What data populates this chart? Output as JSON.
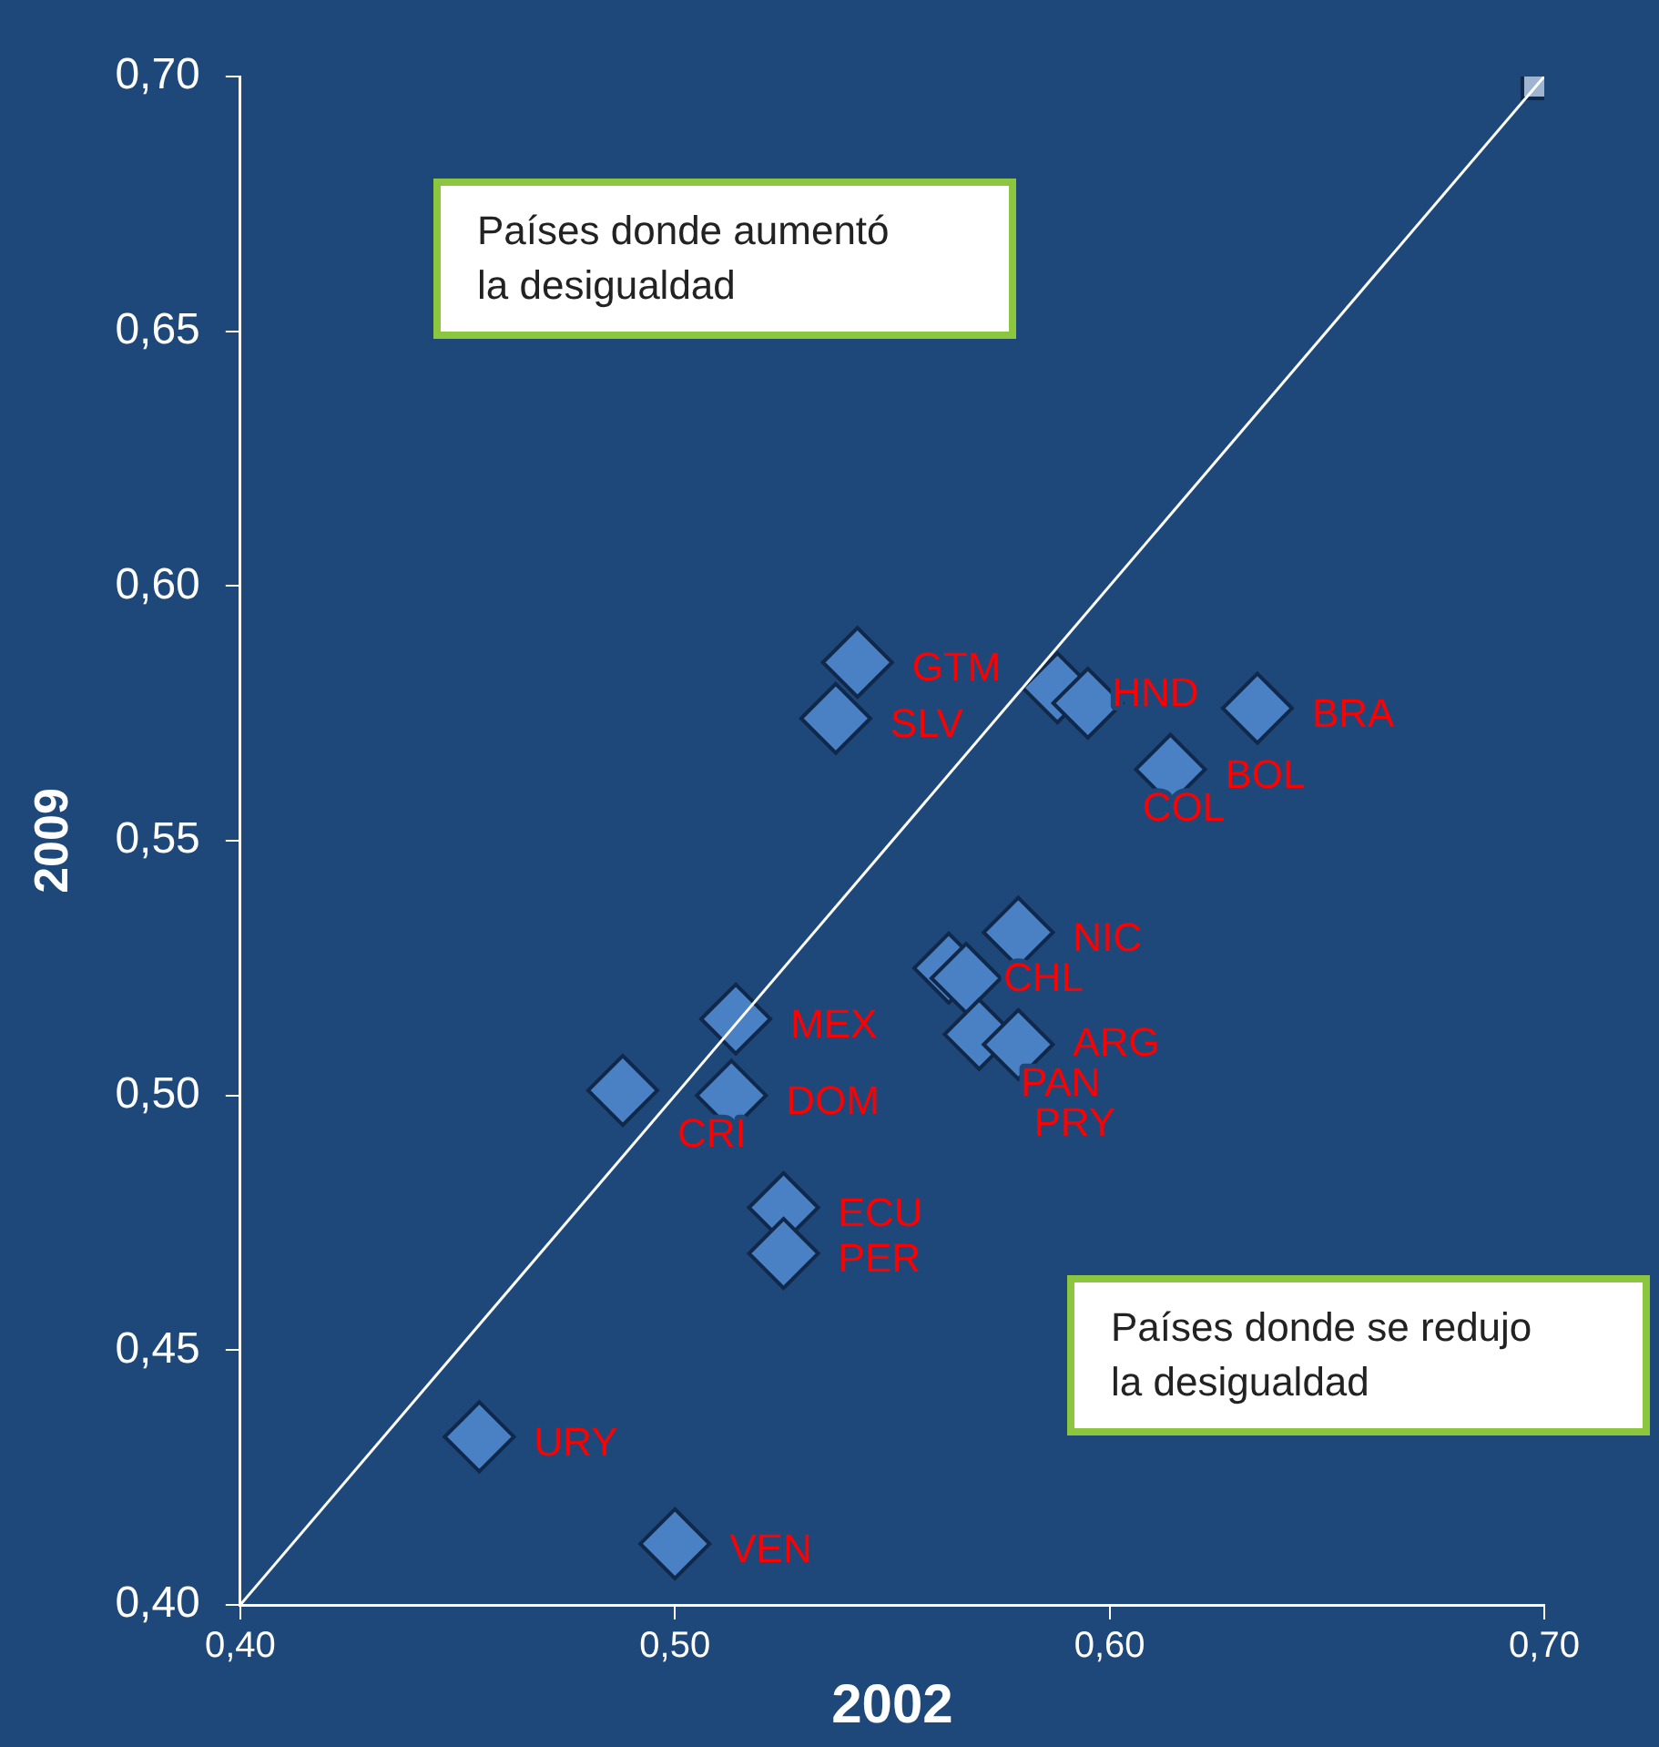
{
  "chart_data": {
    "type": "scatter",
    "xlabel": "2002",
    "ylabel": "2009",
    "xlim": [
      0.4,
      0.7
    ],
    "ylim": [
      0.4,
      0.7
    ],
    "xticks": [
      {
        "value": 0.4,
        "label": "0,40"
      },
      {
        "value": 0.5,
        "label": "0,50"
      },
      {
        "value": 0.6,
        "label": "0,60"
      },
      {
        "value": 0.7,
        "label": "0,70"
      }
    ],
    "yticks": [
      {
        "value": 0.4,
        "label": "0,40"
      },
      {
        "value": 0.45,
        "label": "0,45"
      },
      {
        "value": 0.5,
        "label": "0,50"
      },
      {
        "value": 0.55,
        "label": "0,55"
      },
      {
        "value": 0.6,
        "label": "0,60"
      },
      {
        "value": 0.65,
        "label": "0,65"
      },
      {
        "value": 0.7,
        "label": "0,70"
      }
    ],
    "grid": false,
    "legend": false,
    "series": [
      {
        "type": "line",
        "color": "#ffffff",
        "marker": "none",
        "x": [
          0.4,
          0.7
        ],
        "values": [
          0.4,
          0.7
        ]
      },
      {
        "type": "scatter",
        "color": "#4a80c4",
        "marker": "diamond",
        "x": [
          0.542,
          0.537,
          0.588,
          0.595,
          0.634,
          0.614,
          0.579,
          0.563,
          0.567,
          0.57,
          0.579,
          0.514,
          0.488,
          0.513,
          0.525,
          0.525,
          0.455,
          0.5
        ],
        "values": [
          0.585,
          0.574,
          0.58,
          0.577,
          0.576,
          0.564,
          0.532,
          0.525,
          0.523,
          0.512,
          0.51,
          0.515,
          0.501,
          0.5,
          0.478,
          0.469,
          0.433,
          0.412
        ]
      },
      {
        "type": "scatter",
        "color": "#9fb4d0",
        "marker": "square",
        "x": [
          0.7
        ],
        "values": [
          0.7
        ]
      }
    ],
    "annotations": [
      {
        "text": "GTM",
        "x": 0.542,
        "y": 0.585
      },
      {
        "text": "SLV",
        "x": 0.537,
        "y": 0.574
      },
      {
        "text": "HND",
        "x": 0.588,
        "y": 0.58
      },
      {
        "text": "COL",
        "x": 0.595,
        "y": 0.577
      },
      {
        "text": "BRA",
        "x": 0.634,
        "y": 0.576
      },
      {
        "text": "BOL",
        "x": 0.614,
        "y": 0.564
      },
      {
        "text": "NIC",
        "x": 0.579,
        "y": 0.532
      },
      {
        "text": "CHL",
        "x": 0.563,
        "y": 0.525
      },
      {
        "text": "PAN",
        "x": 0.567,
        "y": 0.523
      },
      {
        "text": "PRY",
        "x": 0.57,
        "y": 0.512
      },
      {
        "text": "ARG",
        "x": 0.579,
        "y": 0.51
      },
      {
        "text": "MEX",
        "x": 0.514,
        "y": 0.515
      },
      {
        "text": "CRI",
        "x": 0.488,
        "y": 0.501
      },
      {
        "text": "DOM",
        "x": 0.513,
        "y": 0.5
      },
      {
        "text": "ECU",
        "x": 0.525,
        "y": 0.478
      },
      {
        "text": "PER",
        "x": 0.525,
        "y": 0.469
      },
      {
        "text": "URY",
        "x": 0.455,
        "y": 0.433
      },
      {
        "text": "VEN",
        "x": 0.5,
        "y": 0.412
      },
      "Países donde aumentó la desigualdad",
      "Países donde se redujo la desigualdad"
    ]
  }
}
